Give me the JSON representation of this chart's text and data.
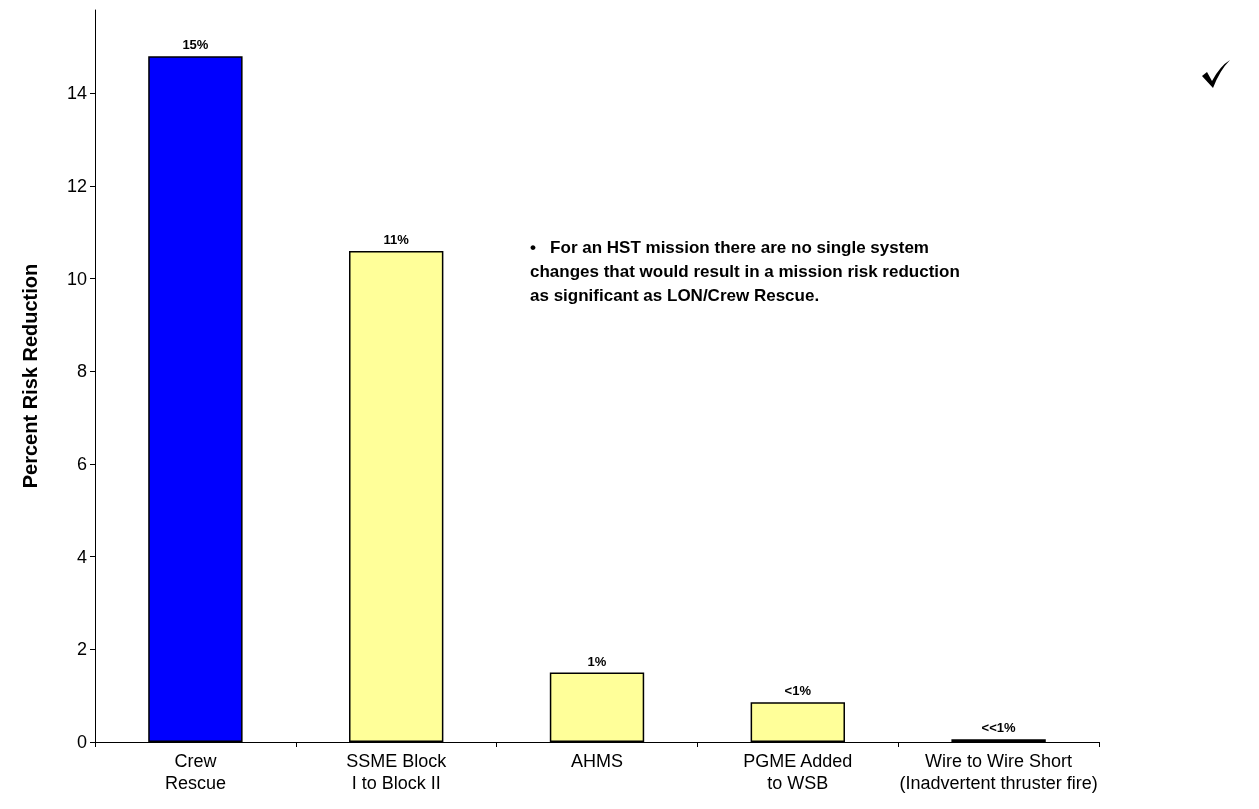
{
  "chart_data": {
    "type": "bar",
    "ylabel": "Percent Risk Reduction",
    "categories": [
      "Crew\nRescue",
      "SSME Block\nI to Block II",
      "AHMS",
      "PGME Added\nto WSB",
      "Wire to Wire Short\n(Inadvertent thruster fire)"
    ],
    "values": [
      14.8,
      10.6,
      1.5,
      0.86,
      0.06
    ],
    "colors": [
      "#0000ff",
      "#ffff99",
      "#ffff99",
      "#ffff99",
      "#ffff99"
    ],
    "value_labels": [
      "15%",
      "11%",
      "1%",
      "<1%",
      "<<1%"
    ],
    "ylim": [
      0,
      15.8
    ],
    "yticks": [
      0,
      2,
      4,
      6,
      8,
      10,
      12,
      14
    ],
    "grid": false,
    "annotations": [
      "•   For an HST mission there are no single system changes that would result in a mission risk reduction as significant as LON/Crew Rescue."
    ]
  }
}
